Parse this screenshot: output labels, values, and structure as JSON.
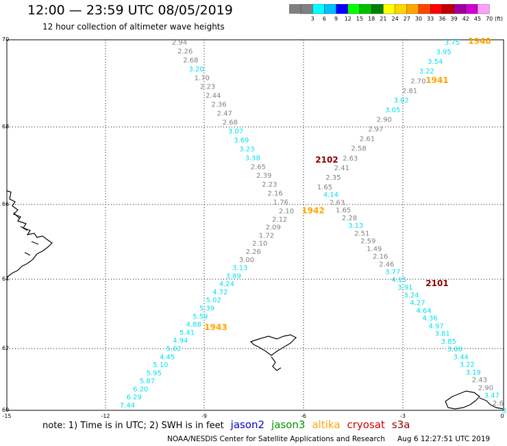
{
  "header": {
    "title": "12:00 — 23:59 UTC 08/05/2019",
    "subtitle": "12 hour collection of altimeter wave heights"
  },
  "legend": {
    "unit_label": "(ft)",
    "bins": [
      {
        "label": "3",
        "color": "#808080"
      },
      {
        "label": "6",
        "color": "#00ffff"
      },
      {
        "label": "9",
        "color": "#00c0ff"
      },
      {
        "label": "12",
        "color": "#0000ff"
      },
      {
        "label": "15",
        "color": "#00ff00"
      },
      {
        "label": "18",
        "color": "#00c000"
      },
      {
        "label": "21",
        "color": "#008000"
      },
      {
        "label": "24",
        "color": "#ffff00"
      },
      {
        "label": "27",
        "color": "#ffd700"
      },
      {
        "label": "30",
        "color": "#ffa500"
      },
      {
        "label": "33",
        "color": "#ff4500"
      },
      {
        "label": "36",
        "color": "#ff0000"
      },
      {
        "label": "39",
        "color": "#c00000"
      },
      {
        "label": "42",
        "color": "#a000a0"
      },
      {
        "label": "45",
        "color": "#d000d0"
      },
      {
        "label": "70",
        "color": "#ffa0ff"
      }
    ],
    "top_swatch_color": "#808080"
  },
  "axes": {
    "lat_ticks": [
      "70",
      "68",
      "66",
      "64",
      "62",
      "60"
    ],
    "lon_ticks": [
      "-15",
      "-12",
      "-9",
      "-6",
      "-3",
      "0"
    ]
  },
  "colors": {
    "gray": "#808080",
    "cyan": "#00e0f0",
    "orange": "#ffa500",
    "darkred": "#8b0000"
  },
  "track_labels": [
    {
      "time": "1940",
      "color": "orange"
    },
    {
      "time": "1941",
      "color": "orange"
    },
    {
      "time": "2102",
      "color": "darkred"
    },
    {
      "time": "1942",
      "color": "orange"
    },
    {
      "time": "2101",
      "color": "darkred"
    },
    {
      "time": "1943",
      "color": "orange"
    }
  ],
  "tracks": [
    {
      "name_hidden": "descending-west",
      "values": [
        {
          "v": "2.94",
          "c": "gray"
        },
        {
          "v": "2.26",
          "c": "gray"
        },
        {
          "v": "2.68",
          "c": "gray"
        },
        {
          "v": "3.20",
          "c": "cyan"
        },
        {
          "v": "1.70",
          "c": "gray"
        },
        {
          "v": "2.23",
          "c": "gray"
        },
        {
          "v": "2.44",
          "c": "gray"
        },
        {
          "v": "2.36",
          "c": "gray"
        },
        {
          "v": "2.47",
          "c": "gray"
        },
        {
          "v": "2.68",
          "c": "gray"
        },
        {
          "v": "3.07",
          "c": "cyan"
        },
        {
          "v": "3.69",
          "c": "cyan"
        },
        {
          "v": "3.23",
          "c": "cyan"
        },
        {
          "v": "3.38",
          "c": "cyan"
        },
        {
          "v": "2.65",
          "c": "gray"
        },
        {
          "v": "2.39",
          "c": "gray"
        },
        {
          "v": "2.23",
          "c": "gray"
        },
        {
          "v": "2.16",
          "c": "gray"
        },
        {
          "v": "1.76",
          "c": "gray"
        },
        {
          "v": "2.10",
          "c": "gray"
        },
        {
          "v": "2.12",
          "c": "gray"
        },
        {
          "v": "2.09",
          "c": "gray"
        },
        {
          "v": "1.72",
          "c": "gray"
        },
        {
          "v": "2.10",
          "c": "gray"
        },
        {
          "v": "2.26",
          "c": "gray"
        },
        {
          "v": "3.00",
          "c": "gray"
        },
        {
          "v": "3.13",
          "c": "cyan"
        },
        {
          "v": "3.89",
          "c": "cyan"
        },
        {
          "v": "4.24",
          "c": "cyan"
        },
        {
          "v": "4.72",
          "c": "cyan"
        },
        {
          "v": "5.02",
          "c": "cyan"
        },
        {
          "v": "5.39",
          "c": "cyan"
        },
        {
          "v": "5.59",
          "c": "cyan"
        },
        {
          "v": "4.88",
          "c": "cyan"
        },
        {
          "v": "5.41",
          "c": "cyan"
        },
        {
          "v": "4.94",
          "c": "cyan"
        },
        {
          "v": "5.02",
          "c": "cyan"
        },
        {
          "v": "4.45",
          "c": "cyan"
        },
        {
          "v": "5.10",
          "c": "cyan"
        },
        {
          "v": "5.95",
          "c": "cyan"
        },
        {
          "v": "5.87",
          "c": "cyan"
        },
        {
          "v": "6.20",
          "c": "cyan"
        },
        {
          "v": "6.29",
          "c": "cyan"
        },
        {
          "v": "7.44",
          "c": "cyan"
        }
      ]
    },
    {
      "name_hidden": "ascending-east",
      "values": [
        {
          "v": "3.75",
          "c": "cyan"
        },
        {
          "v": "3.95",
          "c": "cyan"
        },
        {
          "v": "3.54",
          "c": "cyan"
        },
        {
          "v": "3.22",
          "c": "cyan"
        },
        {
          "v": "2.70",
          "c": "gray"
        },
        {
          "v": "2.81",
          "c": "gray"
        },
        {
          "v": "3.02",
          "c": "cyan"
        },
        {
          "v": "3.05",
          "c": "cyan"
        },
        {
          "v": "2.90",
          "c": "gray"
        },
        {
          "v": "2.97",
          "c": "gray"
        },
        {
          "v": "2.61",
          "c": "gray"
        },
        {
          "v": "2.58",
          "c": "gray"
        },
        {
          "v": "2.63",
          "c": "gray"
        },
        {
          "v": "2.41",
          "c": "gray"
        },
        {
          "v": "2.35",
          "c": "gray"
        },
        {
          "v": "1.65",
          "c": "gray"
        },
        {
          "v": "4.14",
          "c": "cyan"
        },
        {
          "v": "2.63",
          "c": "gray"
        },
        {
          "v": "1.65",
          "c": "gray"
        },
        {
          "v": "2.28",
          "c": "gray"
        },
        {
          "v": "3.13",
          "c": "cyan"
        },
        {
          "v": "2.51",
          "c": "gray"
        },
        {
          "v": "2.59",
          "c": "gray"
        },
        {
          "v": "1.49",
          "c": "gray"
        },
        {
          "v": "2.16",
          "c": "gray"
        },
        {
          "v": "2.46",
          "c": "gray"
        },
        {
          "v": "3.77",
          "c": "cyan"
        },
        {
          "v": "4.15",
          "c": "cyan"
        },
        {
          "v": "3.91",
          "c": "cyan"
        },
        {
          "v": "3.24",
          "c": "cyan"
        },
        {
          "v": "4.27",
          "c": "cyan"
        },
        {
          "v": "4.64",
          "c": "cyan"
        },
        {
          "v": "4.36",
          "c": "cyan"
        },
        {
          "v": "4.97",
          "c": "cyan"
        },
        {
          "v": "3.81",
          "c": "cyan"
        },
        {
          "v": "3.85",
          "c": "cyan"
        },
        {
          "v": "3.00",
          "c": "cyan"
        },
        {
          "v": "3.44",
          "c": "cyan"
        },
        {
          "v": "3.22",
          "c": "cyan"
        },
        {
          "v": "3.19",
          "c": "cyan"
        },
        {
          "v": "2.43",
          "c": "gray"
        },
        {
          "v": "2.90",
          "c": "gray"
        },
        {
          "v": "3.47",
          "c": "cyan"
        },
        {
          "v": "2.6",
          "c": "gray"
        },
        {
          "v": "3",
          "c": "cyan"
        }
      ]
    }
  ],
  "footer": {
    "note": "note: 1) Time is in UTC; 2) SWH is in feet",
    "satellites": [
      {
        "name": "jason2",
        "color": "#0000cc"
      },
      {
        "name": "jason3",
        "color": "#009000"
      },
      {
        "name": "altika",
        "color": "#ffa500"
      },
      {
        "name": "cryosat",
        "color": "#cc0000"
      },
      {
        "name": "s3a",
        "color": "#8b0000"
      }
    ],
    "credit": "NOAA/NESDIS Center for Satellite Applications and Research",
    "timestamp": "Aug  6 12:27:51 UTC 2019"
  }
}
